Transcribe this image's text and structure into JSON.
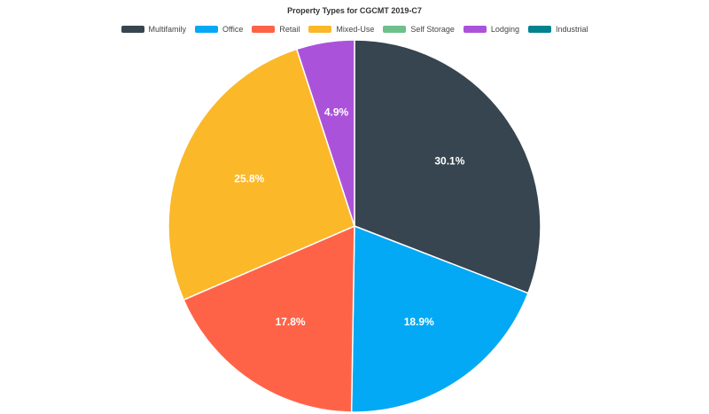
{
  "chart_data": {
    "type": "pie",
    "title": "Property Types for CGCMT 2019-C7",
    "legend_position": "top",
    "categories": [
      "Multifamily",
      "Office",
      "Retail",
      "Mixed-Use",
      "Self Storage",
      "Lodging",
      "Industrial"
    ],
    "values": [
      30.1,
      18.9,
      17.8,
      25.8,
      0,
      4.9,
      0
    ],
    "value_labels": [
      "30.1%",
      "18.9%",
      "17.8%",
      "25.8%",
      "",
      "4.9%",
      ""
    ],
    "colors": [
      "#36454f",
      "#03a9f4",
      "#ff6347",
      "#fbb829",
      "#6dbf8b",
      "#ab52db",
      "#00838f"
    ]
  }
}
